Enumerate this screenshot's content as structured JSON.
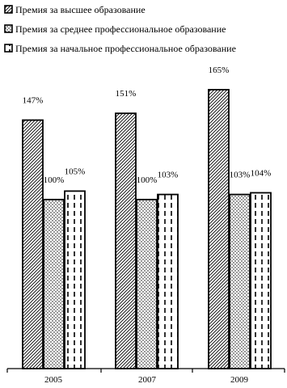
{
  "chart_data": {
    "type": "bar",
    "categories": [
      "2005",
      "2007",
      "2009"
    ],
    "series": [
      {
        "name": "Премия за высшее образование",
        "values": [
          147,
          151,
          165
        ],
        "labels": [
          "147%",
          "151%",
          "165%"
        ],
        "pattern": "diagonal-hatch"
      },
      {
        "name": "Премия за среднее профессиональное образование",
        "values": [
          100,
          100,
          103
        ],
        "labels": [
          "100%",
          "100%",
          "103%"
        ],
        "pattern": "dots"
      },
      {
        "name": "Премия за начальное профессиональное образование",
        "values": [
          105,
          103,
          104
        ],
        "labels": [
          "105%",
          "103%",
          "104%"
        ],
        "pattern": "vertical-dashes"
      }
    ],
    "title": "",
    "xlabel": "",
    "ylabel": "",
    "ylim": [
      0,
      175
    ],
    "grid": false,
    "legend_position": "top-left",
    "colors": {
      "stroke": "#000000",
      "fill": "#ffffff"
    }
  }
}
